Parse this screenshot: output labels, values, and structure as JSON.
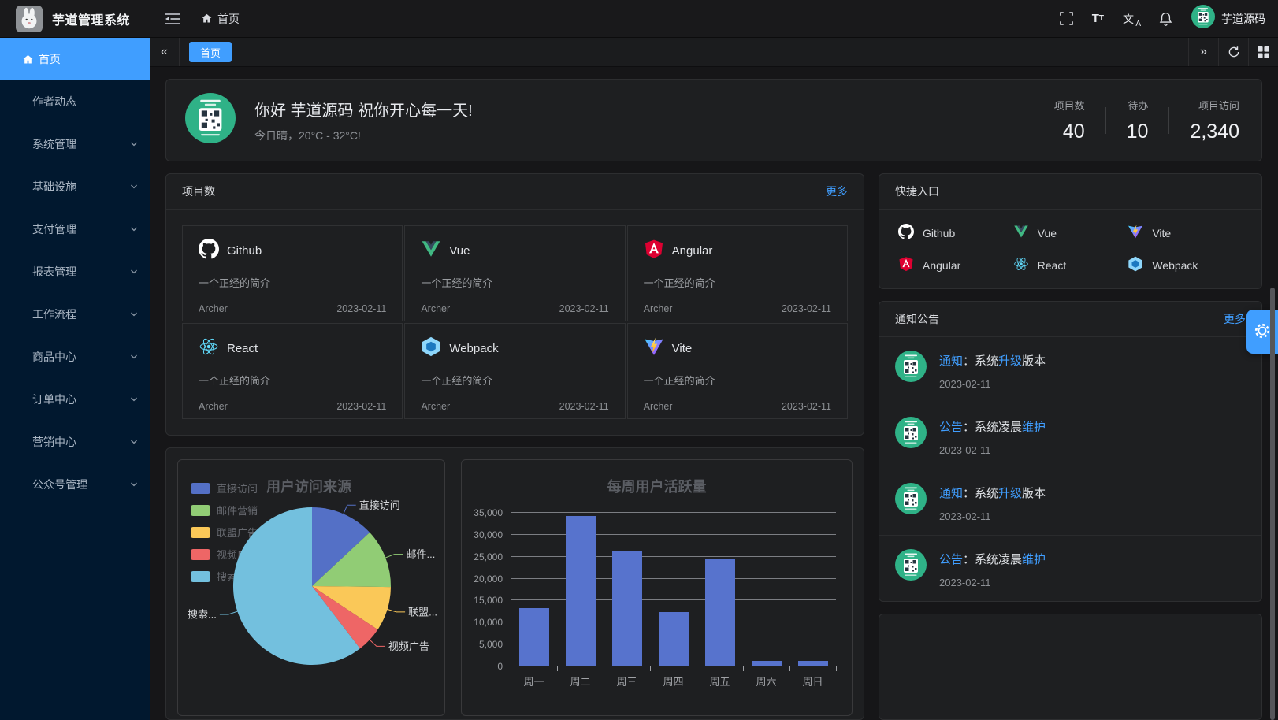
{
  "app": {
    "title": "芋道管理系统",
    "breadcrumb_home": "首页",
    "username": "芋道源码"
  },
  "sidebar": {
    "items": [
      {
        "label": "首页",
        "active": true,
        "icon": "home-icon",
        "has_children": false
      },
      {
        "label": "作者动态",
        "active": false,
        "has_children": false
      },
      {
        "label": "系统管理",
        "active": false,
        "has_children": true
      },
      {
        "label": "基础设施",
        "active": false,
        "has_children": true
      },
      {
        "label": "支付管理",
        "active": false,
        "has_children": true
      },
      {
        "label": "报表管理",
        "active": false,
        "has_children": true
      },
      {
        "label": "工作流程",
        "active": false,
        "has_children": true
      },
      {
        "label": "商品中心",
        "active": false,
        "has_children": true
      },
      {
        "label": "订单中心",
        "active": false,
        "has_children": true
      },
      {
        "label": "营销中心",
        "active": false,
        "has_children": true
      },
      {
        "label": "公众号管理",
        "active": false,
        "has_children": true
      }
    ]
  },
  "tabs": {
    "items": [
      {
        "label": "首页",
        "active": true
      }
    ]
  },
  "welcome": {
    "greeting": "你好 芋道源码 祝你开心每一天!",
    "weather": "今日晴，20°C - 32°C!",
    "stats": [
      {
        "label": "项目数",
        "value": "40"
      },
      {
        "label": "待办",
        "value": "10"
      },
      {
        "label": "项目访问",
        "value": "2,340"
      }
    ]
  },
  "projects": {
    "title": "项目数",
    "more_label": "更多",
    "items": [
      {
        "name": "Github",
        "icon": "github",
        "desc": "一个正经的简介",
        "author": "Archer",
        "date": "2023-02-11"
      },
      {
        "name": "Vue",
        "icon": "vue",
        "desc": "一个正经的简介",
        "author": "Archer",
        "date": "2023-02-11"
      },
      {
        "name": "Angular",
        "icon": "angular",
        "desc": "一个正经的简介",
        "author": "Archer",
        "date": "2023-02-11"
      },
      {
        "name": "React",
        "icon": "react",
        "desc": "一个正经的简介",
        "author": "Archer",
        "date": "2023-02-11"
      },
      {
        "name": "Webpack",
        "icon": "webpack",
        "desc": "一个正经的简介",
        "author": "Archer",
        "date": "2023-02-11"
      },
      {
        "name": "Vite",
        "icon": "vite",
        "desc": "一个正经的简介",
        "author": "Archer",
        "date": "2023-02-11"
      }
    ]
  },
  "shortcuts": {
    "title": "快捷入口",
    "items": [
      {
        "name": "Github",
        "icon": "github"
      },
      {
        "name": "Vue",
        "icon": "vue"
      },
      {
        "name": "Vite",
        "icon": "vite"
      },
      {
        "name": "Angular",
        "icon": "angular"
      },
      {
        "name": "React",
        "icon": "react"
      },
      {
        "name": "Webpack",
        "icon": "webpack"
      }
    ]
  },
  "notices": {
    "title": "通知公告",
    "more_label": "更多",
    "items": [
      {
        "segments": [
          {
            "text": "通知",
            "highlight": true
          },
          {
            "text": "：系统",
            "highlight": false
          },
          {
            "text": "升级",
            "highlight": true
          },
          {
            "text": "版本",
            "highlight": false
          }
        ],
        "date": "2023-02-11"
      },
      {
        "segments": [
          {
            "text": "公告",
            "highlight": true
          },
          {
            "text": "：系统凌晨",
            "highlight": false
          },
          {
            "text": "维护",
            "highlight": true
          }
        ],
        "date": "2023-02-11"
      },
      {
        "segments": [
          {
            "text": "通知",
            "highlight": true
          },
          {
            "text": "：系统",
            "highlight": false
          },
          {
            "text": "升级",
            "highlight": true
          },
          {
            "text": "版本",
            "highlight": false
          }
        ],
        "date": "2023-02-11"
      },
      {
        "segments": [
          {
            "text": "公告",
            "highlight": true
          },
          {
            "text": "：系统凌晨",
            "highlight": false
          },
          {
            "text": "维护",
            "highlight": true
          }
        ],
        "date": "2023-02-11"
      }
    ]
  },
  "chart_data": [
    {
      "type": "pie",
      "title": "用户访问来源",
      "legend_position": "left",
      "series": [
        {
          "name": "直接访问",
          "value": 335,
          "color": "#5470c6",
          "label": "直接访问"
        },
        {
          "name": "邮件营销",
          "value": 310,
          "color": "#91cc75",
          "label": "邮件..."
        },
        {
          "name": "联盟广告",
          "value": 234,
          "color": "#fac858",
          "label": "联盟..."
        },
        {
          "name": "视频广告",
          "value": 135,
          "color": "#ee6666",
          "label": "视频广告"
        },
        {
          "name": "搜索引擎",
          "value": 1548,
          "color": "#73c0de",
          "label": "搜索..."
        }
      ]
    },
    {
      "type": "bar",
      "title": "每周用户活跃量",
      "categories": [
        "周一",
        "周二",
        "周三",
        "周四",
        "周五",
        "周六",
        "周日"
      ],
      "values": [
        13253,
        34235,
        26321,
        12340,
        24643,
        1322,
        1324
      ],
      "ylim": [
        0,
        35000
      ],
      "yticks": [
        "0",
        "5,000",
        "10,000",
        "15,000",
        "20,000",
        "25,000",
        "30,000",
        "35,000"
      ],
      "bar_color": "#5773cd",
      "grid": true,
      "xlabel": "",
      "ylabel": ""
    }
  ],
  "colors": {
    "primary": "#409eff",
    "sidebar_bg": "#01182f",
    "notice_highlight": "#409eff"
  }
}
